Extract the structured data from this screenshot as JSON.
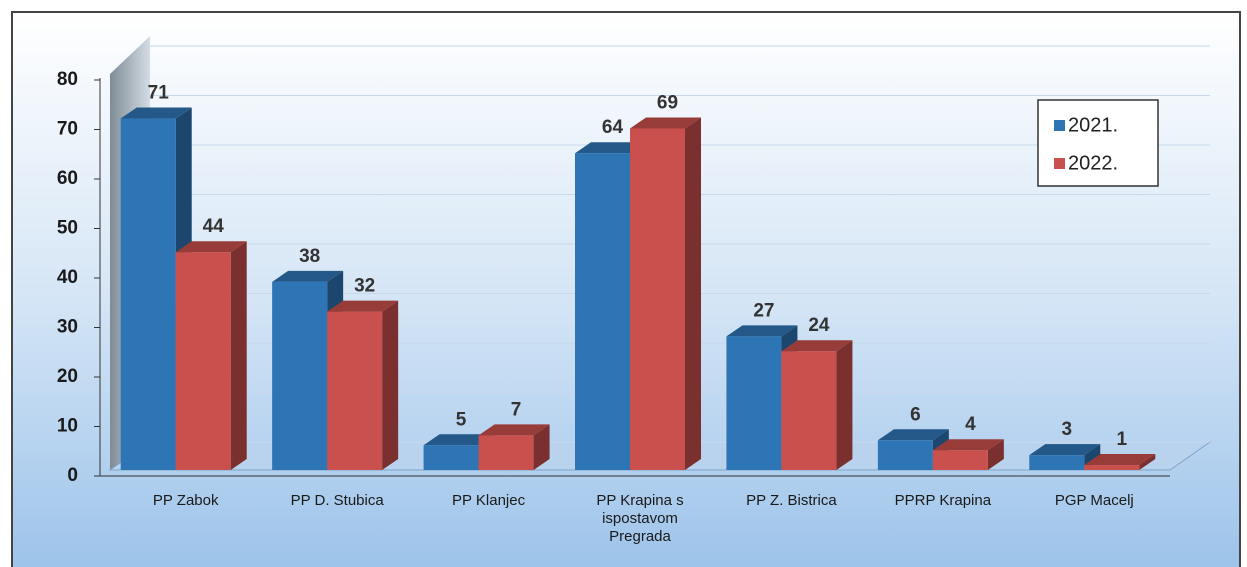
{
  "chart_data": {
    "type": "bar",
    "categories": [
      "PP Zabok",
      "PP D. Stubica",
      "PP Klanjec",
      "PP Krapina s ispostavom Pregrada",
      "PP Z. Bistrica",
      "PPRP Krapina",
      "PGP Macelj"
    ],
    "series": [
      {
        "name": "2021.",
        "color": "#2e75b6",
        "values": [
          71,
          38,
          5,
          64,
          27,
          6,
          3
        ]
      },
      {
        "name": "2022.",
        "color": "#c9504c",
        "values": [
          44,
          32,
          7,
          69,
          24,
          4,
          1
        ]
      }
    ],
    "ylim": [
      0,
      80
    ],
    "yticks": [
      0,
      10,
      20,
      30,
      40,
      50,
      60,
      70,
      80
    ],
    "grid": true,
    "legend": "top-right"
  }
}
